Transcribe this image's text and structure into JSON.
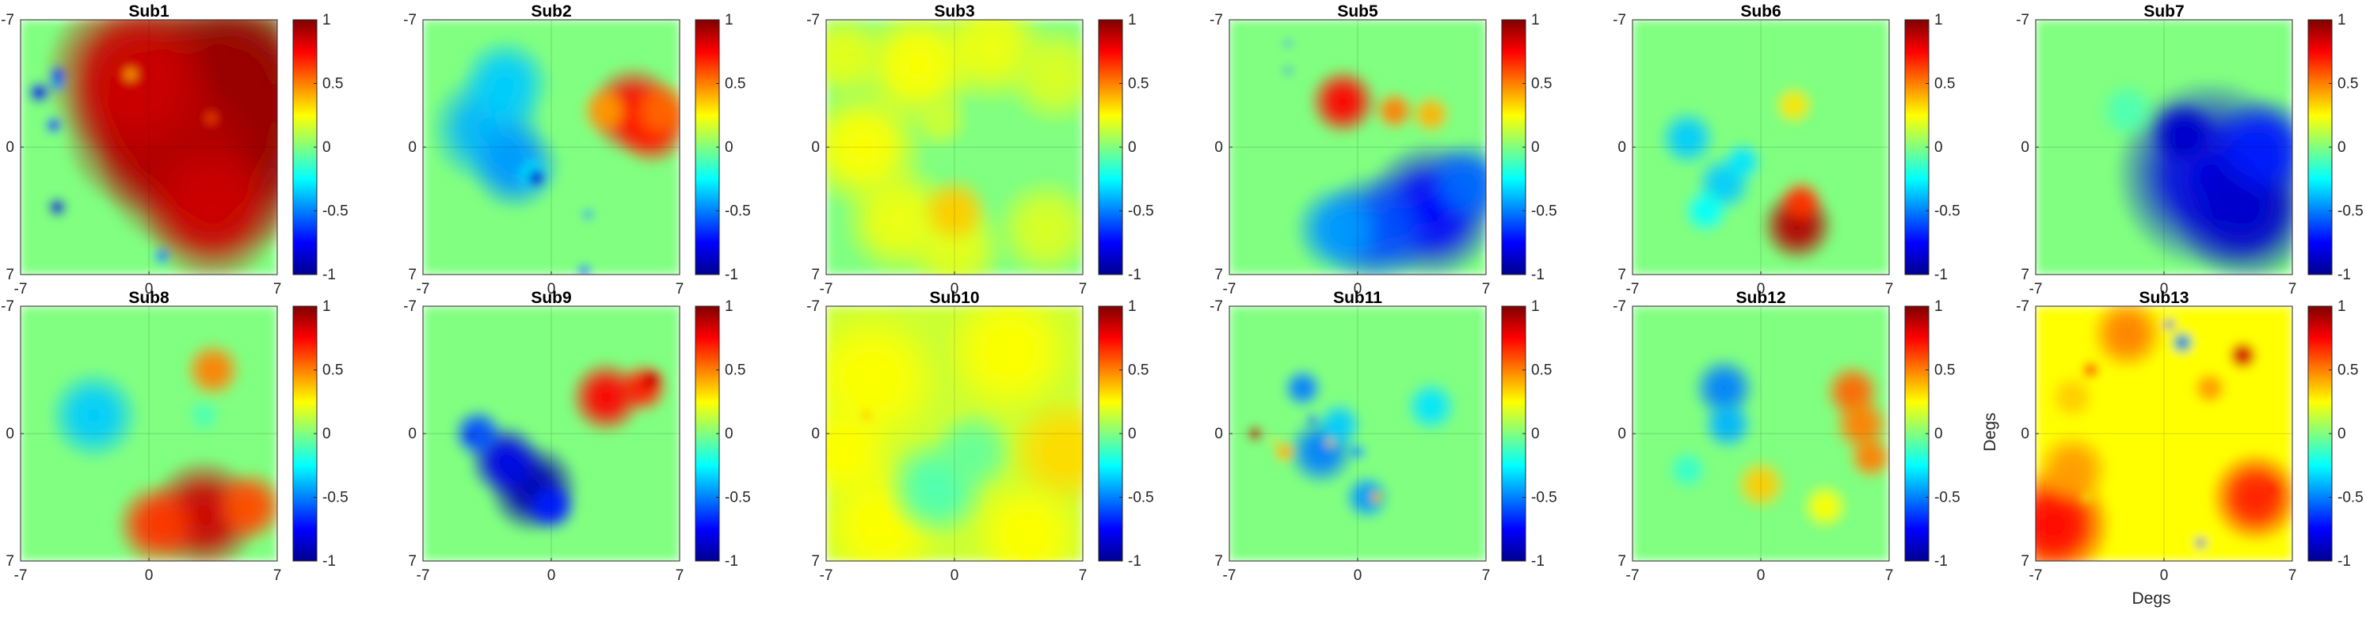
{
  "figure": {
    "xlabel": "Degs",
    "ylabel": "Degs"
  },
  "chart_data": {
    "type": "heatmap",
    "colormap": "jet",
    "clim": [
      -1,
      1
    ],
    "colorbar_ticks": [
      {
        "value": 1,
        "label": "1"
      },
      {
        "value": 0.5,
        "label": "0.5"
      },
      {
        "value": 0,
        "label": "0"
      },
      {
        "value": -0.5,
        "label": "-0.5"
      },
      {
        "value": -1,
        "label": "-1"
      }
    ],
    "xlim": [
      -7,
      7
    ],
    "ylim": [
      -7,
      7
    ],
    "x_ticks": [
      {
        "value": -7,
        "label": "-7"
      },
      {
        "value": 0,
        "label": "0"
      },
      {
        "value": 7,
        "label": "7"
      }
    ],
    "y_ticks": [
      {
        "value": -7,
        "label": "-7"
      },
      {
        "value": 0,
        "label": "0"
      },
      {
        "value": 7,
        "label": "7"
      }
    ],
    "grid": true,
    "y_direction": "reversed",
    "panels": [
      {
        "title": "Sub1",
        "background": 0,
        "blobs": [
          [
            2.5,
            -3,
            4,
            0.95
          ],
          [
            5,
            -4,
            3,
            0.95
          ],
          [
            5.5,
            0,
            3.5,
            0.95
          ],
          [
            2,
            1,
            3,
            0.9
          ],
          [
            0,
            -1,
            3,
            0.9
          ],
          [
            -1,
            -4,
            3,
            0.85
          ],
          [
            3.5,
            3.5,
            2.5,
            0.85
          ],
          [
            -6,
            -3,
            0.4,
            -0.8
          ],
          [
            -5,
            -4,
            0.3,
            -0.7
          ],
          [
            -5,
            -3.5,
            0.3,
            -0.5
          ],
          [
            -5.2,
            -1.2,
            0.3,
            -0.7
          ],
          [
            -5,
            3.3,
            0.35,
            -0.85
          ],
          [
            0.7,
            6,
            0.3,
            -0.5
          ],
          [
            -1,
            -4,
            0.3,
            0.4
          ],
          [
            3.4,
            -1.6,
            0.25,
            0.6
          ]
        ]
      },
      {
        "title": "Sub2",
        "background": 0,
        "blobs": [
          [
            -3.5,
            -1,
            2,
            -0.4
          ],
          [
            -2.5,
            -3.5,
            1.6,
            -0.35
          ],
          [
            -2,
            1,
            1.6,
            -0.45
          ],
          [
            -1,
            1.5,
            0.6,
            -0.3
          ],
          [
            4.5,
            -2,
            1.6,
            0.75
          ],
          [
            5.5,
            -1,
            1.3,
            0.7
          ],
          [
            6,
            -2,
            1.1,
            0.55
          ],
          [
            3,
            -2,
            0.9,
            0.45
          ],
          [
            -0.8,
            1.7,
            0.35,
            -0.85
          ],
          [
            2,
            3.7,
            0.2,
            -0.5
          ],
          [
            1.8,
            6.8,
            0.25,
            -0.6
          ]
        ]
      },
      {
        "title": "Sub3",
        "background": 0,
        "blobs": [
          [
            -5,
            0,
            2.2,
            0.25
          ],
          [
            -2,
            -4.5,
            2.2,
            0.25
          ],
          [
            2,
            -5.5,
            2,
            0.22
          ],
          [
            -3,
            4,
            2,
            0.22
          ],
          [
            0,
            5.5,
            1.8,
            0.2
          ],
          [
            5.5,
            -4,
            1.8,
            0.18
          ],
          [
            5,
            4.5,
            1.8,
            0.18
          ],
          [
            -6,
            -5,
            1.6,
            0.2
          ],
          [
            0,
            3.5,
            1.2,
            0.35
          ],
          [
            -0.8,
            -1.5,
            1,
            0.15
          ]
        ]
      },
      {
        "title": "Sub5",
        "background": 0,
        "blobs": [
          [
            -0.8,
            -2.5,
            1.2,
            0.75
          ],
          [
            2,
            -2,
            0.7,
            0.5
          ],
          [
            4,
            -1.8,
            0.7,
            0.4
          ],
          [
            4,
            3.5,
            2.4,
            -0.75
          ],
          [
            1,
            4.5,
            2,
            -0.6
          ],
          [
            -1,
            4.5,
            1.6,
            -0.45
          ],
          [
            6,
            2,
            1.5,
            -0.55
          ],
          [
            -3.8,
            -5.7,
            0.15,
            -0.5
          ],
          [
            -3.8,
            -4.2,
            0.15,
            -0.6
          ]
        ]
      },
      {
        "title": "Sub6",
        "background": 0,
        "blobs": [
          [
            2,
            4.3,
            1.3,
            0.9
          ],
          [
            2.2,
            3,
            0.8,
            0.65
          ],
          [
            1.8,
            -2.3,
            0.7,
            0.3
          ],
          [
            -4,
            -0.5,
            1,
            -0.35
          ],
          [
            -2,
            2,
            1,
            -0.35
          ],
          [
            -1,
            0.8,
            0.7,
            -0.3
          ],
          [
            -3,
            3.5,
            0.8,
            -0.25
          ]
        ]
      },
      {
        "title": "Sub7",
        "background": 0,
        "blobs": [
          [
            2.5,
            1.5,
            3.3,
            -0.8
          ],
          [
            4.5,
            3.5,
            2.5,
            -0.85
          ],
          [
            1,
            -0.8,
            1.2,
            -0.85
          ],
          [
            5.5,
            0,
            1.8,
            -0.7
          ],
          [
            -2,
            -2,
            1,
            -0.1
          ]
        ]
      },
      {
        "title": "Sub8",
        "background": 0,
        "blobs": [
          [
            3,
            4.5,
            2,
            0.85
          ],
          [
            0.5,
            5,
            1.5,
            0.65
          ],
          [
            5.5,
            4,
            1.3,
            0.6
          ],
          [
            3.5,
            -3.5,
            1,
            0.5
          ],
          [
            -3,
            -1,
            1.6,
            -0.35
          ],
          [
            3,
            -1,
            0.6,
            -0.1
          ]
        ]
      },
      {
        "title": "Sub9",
        "background": 0,
        "blobs": [
          [
            -1,
            3,
            1.6,
            -0.9
          ],
          [
            -2.5,
            1.5,
            1.3,
            -0.8
          ],
          [
            -4,
            0,
            0.9,
            -0.6
          ],
          [
            0,
            4,
            0.9,
            -0.7
          ],
          [
            3,
            -2,
            1.3,
            0.75
          ],
          [
            5,
            -2.5,
            0.9,
            0.7
          ],
          [
            5.5,
            -3,
            0.45,
            0.85
          ],
          [
            -4.5,
            0.2,
            0.2,
            -0.8
          ]
        ]
      },
      {
        "title": "Sub10",
        "background": 0.15,
        "blobs": [
          [
            -4.5,
            -3,
            2.5,
            0.25
          ],
          [
            3,
            -4.5,
            2.3,
            0.25
          ],
          [
            6,
            1,
            2,
            0.32
          ],
          [
            -4,
            5,
            2.2,
            0.25
          ],
          [
            4,
            5.5,
            2,
            0.25
          ],
          [
            -6,
            1,
            1.8,
            0.25
          ],
          [
            -1,
            3,
            1.8,
            -0.1
          ],
          [
            1,
            1,
            1.5,
            -0.05
          ],
          [
            -4.8,
            -1,
            0.2,
            0.4
          ]
        ]
      },
      {
        "title": "Sub11",
        "background": 0,
        "blobs": [
          [
            -2,
            1,
            1.2,
            -0.5
          ],
          [
            -3,
            -2.5,
            0.7,
            -0.5
          ],
          [
            0.5,
            3.5,
            0.8,
            -0.45
          ],
          [
            4,
            -1.5,
            0.9,
            -0.3
          ],
          [
            -1,
            -0.5,
            0.8,
            -0.35
          ],
          [
            -5.6,
            0,
            0.3,
            0.9
          ],
          [
            -4,
            1,
            0.4,
            0.4
          ],
          [
            1,
            3.5,
            0.25,
            0.4
          ],
          [
            -2.5,
            -0.8,
            0.2,
            -0.6
          ],
          [
            0,
            1,
            0.3,
            -0.45
          ],
          [
            -1.5,
            0.5,
            0.2,
            0.35
          ],
          [
            -4.6,
            0.4,
            0.15,
            0.35
          ]
        ]
      },
      {
        "title": "Sub12",
        "background": 0,
        "blobs": [
          [
            5,
            -2.3,
            1,
            0.55
          ],
          [
            5.5,
            -0.5,
            1,
            0.5
          ],
          [
            6,
            1.3,
            0.8,
            0.5
          ],
          [
            -2,
            -2.5,
            1.1,
            -0.5
          ],
          [
            -1.8,
            -0.5,
            0.9,
            -0.4
          ],
          [
            0,
            2.8,
            0.9,
            0.35
          ],
          [
            3.5,
            4,
            0.8,
            0.25
          ],
          [
            -4,
            2,
            0.7,
            -0.15
          ]
        ]
      },
      {
        "title": "Sub13",
        "background": 0.25,
        "blobs": [
          [
            5,
            3.5,
            1.6,
            0.7
          ],
          [
            -6,
            5,
            2,
            0.75
          ],
          [
            -5,
            2,
            1.3,
            0.45
          ],
          [
            -5,
            -2,
            0.8,
            0.35
          ],
          [
            4.3,
            -4.3,
            0.5,
            0.85
          ],
          [
            2.5,
            -2.5,
            0.6,
            0.45
          ],
          [
            1,
            -5,
            0.4,
            -0.5
          ],
          [
            0.3,
            -6,
            0.2,
            -0.7
          ],
          [
            -4,
            -3.5,
            0.3,
            0.7
          ],
          [
            2,
            6,
            0.2,
            -0.7
          ],
          [
            6,
            3,
            0.25,
            0.75
          ],
          [
            -2,
            -5.5,
            1.3,
            0.5
          ],
          [
            -1,
            3,
            1,
            0.25
          ],
          [
            -4.2,
            3.5,
            0.2,
            0.2
          ]
        ]
      }
    ]
  }
}
